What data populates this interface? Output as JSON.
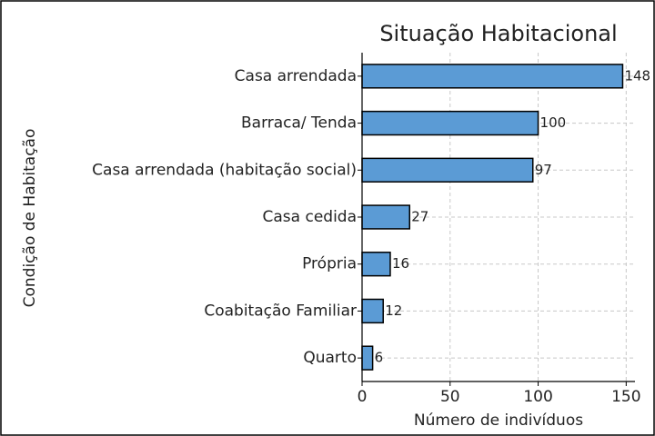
{
  "chart_data": {
    "type": "hbar",
    "title": "Situação Habitacional",
    "xlabel": "Número de indivíduos",
    "ylabel": "Condição de Habitação",
    "categories": [
      "Casa arrendada",
      "Barraca/ Tenda",
      "Casa arrendada (habitação social)",
      "Casa cedida",
      "Própria",
      "Coabitação Familiar",
      "Quarto"
    ],
    "values": [
      148,
      100,
      97,
      27,
      16,
      12,
      6
    ],
    "color": "#5b9bd5",
    "edgecolor": "#000000",
    "xlim": [
      0,
      155
    ],
    "xticks": [
      0,
      50,
      100,
      150
    ],
    "grid": true
  }
}
